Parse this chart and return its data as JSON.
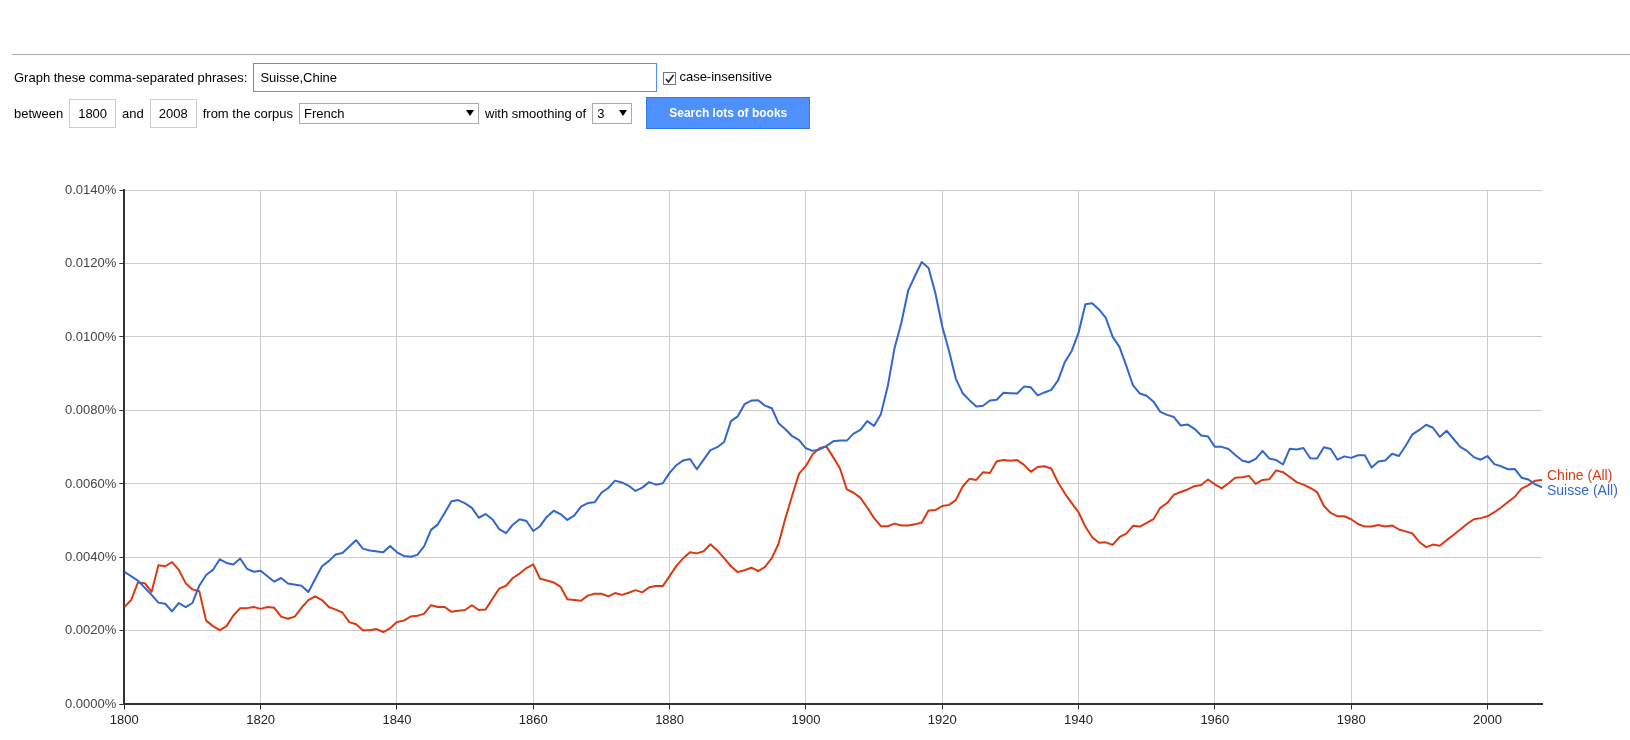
{
  "chart_data": {
    "type": "line",
    "annotations": [
      "Graph these comma-separated phrases:",
      "Suisse,Chine",
      "case-insensitive",
      "between",
      "1800",
      "and",
      "2008",
      "from the corpus",
      "French",
      "with smoothing of",
      "3",
      "Search lots of books"
    ],
    "xlim": [
      1800,
      2008
    ],
    "xticks": [
      1800,
      1820,
      1840,
      1860,
      1880,
      1900,
      1920,
      1940,
      1960,
      1980,
      2000
    ],
    "ylim": [
      0,
      0.014
    ],
    "yticks": [
      {
        "value": 0,
        "label": "0.0000%"
      },
      {
        "value": 0.002,
        "label": "0.0020%"
      },
      {
        "value": 0.004,
        "label": "0.0040%"
      },
      {
        "value": 0.006,
        "label": "0.0060%"
      },
      {
        "value": 0.008,
        "label": "0.0080%"
      },
      {
        "value": 0.01,
        "label": "0.0100%"
      },
      {
        "value": 0.012,
        "label": "0.0120%"
      },
      {
        "value": 0.014,
        "label": "0.0140%"
      }
    ],
    "grid": true,
    "legend": false,
    "marker": "none",
    "line_style": "solid",
    "series": [
      {
        "name": "Suisse (All)",
        "color": "#3366cc",
        "x": [
          1800,
          1802,
          1804,
          1805,
          1806,
          1807,
          1808,
          1809,
          1810,
          1811,
          1812,
          1813,
          1814,
          1815,
          1816,
          1817,
          1818,
          1819,
          1820,
          1822,
          1823,
          1824,
          1826,
          1827,
          1829,
          1830,
          1831,
          1832,
          1834,
          1835,
          1836,
          1838,
          1839,
          1840,
          1841,
          1842,
          1843,
          1844,
          1845,
          1846,
          1847,
          1848,
          1849,
          1850,
          1851,
          1852,
          1853,
          1854,
          1855,
          1856,
          1857,
          1858,
          1859,
          1860,
          1861,
          1862,
          1863,
          1864,
          1865,
          1866,
          1867,
          1868,
          1869,
          1870,
          1871,
          1872,
          1873,
          1874,
          1875,
          1876,
          1877,
          1878,
          1879,
          1880,
          1881,
          1882,
          1883,
          1884,
          1885,
          1886,
          1887,
          1888,
          1889,
          1890,
          1891,
          1892,
          1893,
          1894,
          1895,
          1896,
          1897,
          1898,
          1899,
          1900,
          1901,
          1902,
          1903,
          1904,
          1905,
          1906,
          1907,
          1908,
          1909,
          1910,
          1911,
          1912,
          1913,
          1914,
          1915,
          1916,
          1917,
          1918,
          1919,
          1920,
          1921,
          1922,
          1923,
          1924,
          1925,
          1926,
          1927,
          1928,
          1929,
          1930,
          1931,
          1932,
          1933,
          1934,
          1935,
          1936,
          1937,
          1938,
          1939,
          1940,
          1941,
          1942,
          1943,
          1944,
          1945,
          1946,
          1947,
          1948,
          1949,
          1950,
          1951,
          1952,
          1953,
          1954,
          1955,
          1956,
          1957,
          1958,
          1959,
          1960,
          1961,
          1962,
          1963,
          1964,
          1965,
          1966,
          1967,
          1968,
          1969,
          1970,
          1971,
          1972,
          1973,
          1974,
          1975,
          1976,
          1977,
          1978,
          1979,
          1980,
          1981,
          1982,
          1983,
          1984,
          1985,
          1986,
          1987,
          1988,
          1989,
          1990,
          1991,
          1992,
          1993,
          1994,
          1995,
          1996,
          1997,
          1998,
          1999,
          2000,
          2001,
          2002,
          2003,
          2004,
          2005,
          2006,
          2007,
          2008
        ],
        "values": [
          0.00361,
          0.00337,
          0.00298,
          0.00277,
          0.00274,
          0.00253,
          0.00276,
          0.00265,
          0.00276,
          0.00323,
          0.00352,
          0.00366,
          0.00395,
          0.00385,
          0.00381,
          0.00397,
          0.00369,
          0.00361,
          0.00364,
          0.00334,
          0.00344,
          0.00329,
          0.00323,
          0.00306,
          0.00376,
          0.0039,
          0.00408,
          0.00412,
          0.00447,
          0.00424,
          0.00419,
          0.00414,
          0.00431,
          0.00414,
          0.00404,
          0.00402,
          0.00407,
          0.00431,
          0.00475,
          0.0049,
          0.00521,
          0.00553,
          0.00556,
          0.00547,
          0.00535,
          0.00508,
          0.00518,
          0.00504,
          0.00477,
          0.00466,
          0.00489,
          0.00504,
          0.00499,
          0.00472,
          0.00485,
          0.00511,
          0.00527,
          0.00518,
          0.00502,
          0.00514,
          0.00538,
          0.00548,
          0.0055,
          0.00576,
          0.00589,
          0.00609,
          0.00604,
          0.00595,
          0.00581,
          0.0059,
          0.00605,
          0.00598,
          0.00602,
          0.0063,
          0.00651,
          0.00664,
          0.00668,
          0.0064,
          0.00666,
          0.00692,
          0.007,
          0.00714,
          0.00771,
          0.00784,
          0.00817,
          0.00827,
          0.00828,
          0.00813,
          0.00806,
          0.00765,
          0.00749,
          0.0073,
          0.00719,
          0.00697,
          0.0069,
          0.00694,
          0.00703,
          0.00716,
          0.00718,
          0.00718,
          0.00737,
          0.00747,
          0.00771,
          0.00758,
          0.0079,
          0.00865,
          0.00969,
          0.01038,
          0.01126,
          0.01166,
          0.01204,
          0.01188,
          0.01119,
          0.01029,
          0.00962,
          0.00886,
          0.00847,
          0.00828,
          0.00811,
          0.00813,
          0.00827,
          0.00829,
          0.00848,
          0.00847,
          0.00846,
          0.00865,
          0.00863,
          0.00841,
          0.00849,
          0.00856,
          0.00882,
          0.00932,
          0.00962,
          0.01011,
          0.01089,
          0.01092,
          0.01075,
          0.01052,
          0.01001,
          0.00973,
          0.00922,
          0.00868,
          0.00846,
          0.0084,
          0.00824,
          0.00796,
          0.00788,
          0.00782,
          0.00759,
          0.00762,
          0.0075,
          0.00732,
          0.00729,
          0.00701,
          0.00701,
          0.00695,
          0.00679,
          0.00664,
          0.00659,
          0.00668,
          0.0069,
          0.00669,
          0.00665,
          0.00653,
          0.00696,
          0.00694,
          0.00698,
          0.0067,
          0.00669,
          0.007,
          0.00695,
          0.00666,
          0.00675,
          0.00671,
          0.00678,
          0.00678,
          0.00645,
          0.00661,
          0.00664,
          0.00682,
          0.00676,
          0.00704,
          0.00735,
          0.00747,
          0.00761,
          0.00753,
          0.00728,
          0.00745,
          0.00723,
          0.00701,
          0.0069,
          0.00673,
          0.00666,
          0.00676,
          0.00654,
          0.00648,
          0.0064,
          0.00641,
          0.00617,
          0.00612,
          0.00599,
          0.00591
        ]
      },
      {
        "name": "Chine (All)",
        "color": "#dc3912",
        "x": [
          1800,
          1801,
          1802,
          1803,
          1804,
          1805,
          1806,
          1807,
          1808,
          1809,
          1810,
          1811,
          1812,
          1813,
          1814,
          1815,
          1816,
          1817,
          1818,
          1819,
          1820,
          1821,
          1822,
          1823,
          1824,
          1825,
          1826,
          1827,
          1828,
          1829,
          1830,
          1831,
          1832,
          1833,
          1834,
          1835,
          1836,
          1837,
          1838,
          1839,
          1840,
          1841,
          1842,
          1843,
          1844,
          1845,
          1846,
          1847,
          1848,
          1849,
          1850,
          1851,
          1852,
          1853,
          1854,
          1855,
          1856,
          1857,
          1858,
          1859,
          1860,
          1861,
          1862,
          1863,
          1864,
          1865,
          1866,
          1867,
          1868,
          1869,
          1870,
          1871,
          1872,
          1873,
          1874,
          1875,
          1876,
          1877,
          1878,
          1879,
          1880,
          1881,
          1882,
          1883,
          1884,
          1885,
          1886,
          1887,
          1888,
          1889,
          1890,
          1891,
          1892,
          1893,
          1894,
          1895,
          1896,
          1897,
          1898,
          1899,
          1900,
          1901,
          1902,
          1903,
          1904,
          1905,
          1906,
          1907,
          1908,
          1909,
          1910,
          1911,
          1912,
          1913,
          1914,
          1915,
          1916,
          1917,
          1918,
          1919,
          1920,
          1921,
          1922,
          1923,
          1924,
          1925,
          1926,
          1927,
          1928,
          1929,
          1930,
          1931,
          1932,
          1933,
          1934,
          1935,
          1936,
          1937,
          1938,
          1939,
          1940,
          1941,
          1942,
          1943,
          1944,
          1945,
          1946,
          1947,
          1948,
          1949,
          1950,
          1951,
          1952,
          1953,
          1954,
          1955,
          1956,
          1957,
          1958,
          1959,
          1960,
          1961,
          1962,
          1963,
          1964,
          1965,
          1966,
          1967,
          1968,
          1969,
          1970,
          1971,
          1972,
          1973,
          1974,
          1975,
          1976,
          1977,
          1978,
          1979,
          1980,
          1981,
          1982,
          1983,
          1984,
          1985,
          1986,
          1987,
          1988,
          1989,
          1990,
          1991,
          1992,
          1993,
          1994,
          1995,
          1996,
          1997,
          1998,
          1999,
          2000,
          2001,
          2002,
          2003,
          2004,
          2005,
          2006,
          2007,
          2008
        ],
        "values": [
          0.00265,
          0.00284,
          0.00332,
          0.0033,
          0.00306,
          0.00379,
          0.00376,
          0.00387,
          0.00366,
          0.0033,
          0.00313,
          0.00308,
          0.00228,
          0.00213,
          0.00202,
          0.00213,
          0.00242,
          0.00262,
          0.00262,
          0.00265,
          0.0026,
          0.00265,
          0.00263,
          0.00239,
          0.00233,
          0.00239,
          0.00263,
          0.00284,
          0.00294,
          0.00284,
          0.00265,
          0.00258,
          0.0025,
          0.00224,
          0.00218,
          0.00202,
          0.00202,
          0.00205,
          0.00197,
          0.00207,
          0.00224,
          0.00228,
          0.00239,
          0.00241,
          0.00247,
          0.0027,
          0.00265,
          0.00265,
          0.00252,
          0.00255,
          0.00257,
          0.0027,
          0.00257,
          0.00258,
          0.00287,
          0.00315,
          0.00323,
          0.00344,
          0.00356,
          0.00371,
          0.00381,
          0.00342,
          0.00337,
          0.00332,
          0.0032,
          0.00286,
          0.00284,
          0.00282,
          0.00296,
          0.00301,
          0.00301,
          0.00294,
          0.00303,
          0.00298,
          0.00304,
          0.00311,
          0.00305,
          0.00319,
          0.00322,
          0.00322,
          0.00349,
          0.00377,
          0.00398,
          0.00414,
          0.00411,
          0.00417,
          0.00436,
          0.00419,
          0.00398,
          0.00376,
          0.0036,
          0.00365,
          0.00372,
          0.00363,
          0.00374,
          0.00398,
          0.00438,
          0.00507,
          0.00569,
          0.00628,
          0.00649,
          0.00681,
          0.00697,
          0.00702,
          0.00673,
          0.00642,
          0.00585,
          0.00576,
          0.00562,
          0.00536,
          0.00507,
          0.00485,
          0.00485,
          0.00492,
          0.00487,
          0.00487,
          0.0049,
          0.00495,
          0.00528,
          0.00529,
          0.0054,
          0.00543,
          0.00556,
          0.00593,
          0.00614,
          0.00611,
          0.00632,
          0.0063,
          0.00662,
          0.00665,
          0.00663,
          0.00665,
          0.00652,
          0.00633,
          0.00646,
          0.00648,
          0.00642,
          0.00604,
          0.00574,
          0.00548,
          0.00523,
          0.00484,
          0.00455,
          0.0044,
          0.00441,
          0.00434,
          0.00455,
          0.00465,
          0.00486,
          0.00484,
          0.00494,
          0.00504,
          0.00535,
          0.00548,
          0.00571,
          0.00578,
          0.00585,
          0.00594,
          0.00597,
          0.00612,
          0.00599,
          0.00588,
          0.00602,
          0.00617,
          0.00618,
          0.00622,
          0.006,
          0.00611,
          0.00613,
          0.00637,
          0.00632,
          0.00619,
          0.00605,
          0.00598,
          0.00589,
          0.00578,
          0.0054,
          0.00521,
          0.00512,
          0.00512,
          0.00504,
          0.00491,
          0.00484,
          0.00484,
          0.00488,
          0.00484,
          0.00487,
          0.00476,
          0.00471,
          0.00465,
          0.00442,
          0.00428,
          0.00435,
          0.00432,
          0.00447,
          0.00461,
          0.00476,
          0.00491,
          0.00504,
          0.00507,
          0.00512,
          0.00523,
          0.00536,
          0.00551,
          0.00565,
          0.00587,
          0.00597,
          0.00609,
          0.00611
        ]
      }
    ]
  }
}
